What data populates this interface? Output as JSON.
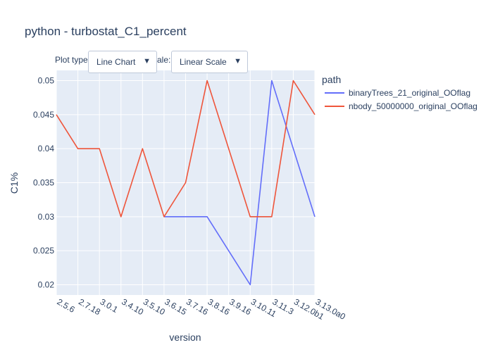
{
  "chart_data": {
    "type": "line",
    "title": "python - turbostat_C1_percent",
    "xlabel": "version",
    "ylabel": "C1%",
    "categories": [
      "2.5.6",
      "2.7.18",
      "3.0.1",
      "3.4.10",
      "3.5.10",
      "3.6.15",
      "3.7.16",
      "3.8.16",
      "3.9.16",
      "3.10.11",
      "3.11.3",
      "3.12.0b1",
      "3.13.0a0"
    ],
    "ylim": [
      0.0185,
      0.0515
    ],
    "yticks": [
      0.02,
      0.025,
      0.03,
      0.035,
      0.04,
      0.045,
      0.05
    ],
    "ytick_labels": [
      "0.02",
      "0.025",
      "0.03",
      "0.035",
      "0.04",
      "0.045",
      "0.05"
    ],
    "grid": true,
    "legend_title": "path",
    "legend_position": "right",
    "series": [
      {
        "name": "binaryTrees_21_original_OOflag",
        "color": "#636efa",
        "values": [
          null,
          null,
          null,
          null,
          null,
          0.03,
          0.03,
          0.03,
          null,
          0.02,
          0.05,
          null,
          0.03
        ]
      },
      {
        "name": "nbody_50000000_original_OOflag",
        "color": "#ef553b",
        "values": [
          0.045,
          0.04,
          0.04,
          0.03,
          0.04,
          0.03,
          0.035,
          0.05,
          null,
          0.03,
          0.03,
          0.05,
          0.045
        ]
      }
    ]
  },
  "controls": {
    "plot_type_label": "Plot type",
    "plot_type_value": "Line Chart",
    "scale_label_visible": "ale:",
    "scale_value": "Linear Scale",
    "arrow_icon": "▼"
  }
}
